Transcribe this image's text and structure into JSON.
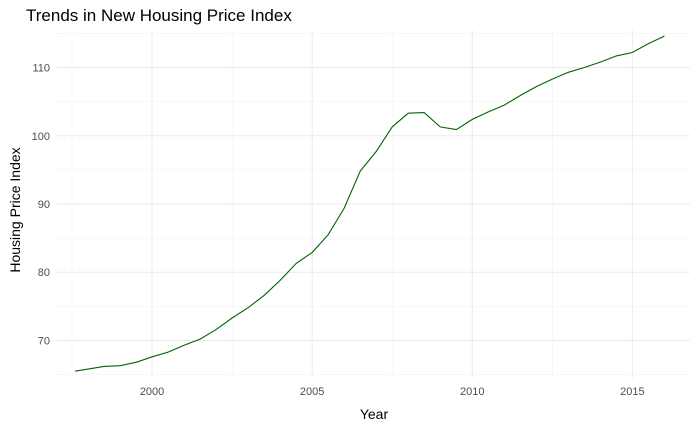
{
  "chart_data": {
    "type": "line",
    "title": "Trends in New Housing Price Index",
    "xlabel": "Year",
    "ylabel": "Housing Price Index",
    "xlim": [
      1997.0,
      2016.8
    ],
    "ylim": [
      64.5,
      115.5
    ],
    "x_ticks": [
      2000,
      2005,
      2010,
      2015
    ],
    "y_ticks": [
      70,
      80,
      90,
      100,
      110
    ],
    "grid": true,
    "line_color": "#006400",
    "series": [
      {
        "x": [
          1997.6,
          1998.0,
          1998.5,
          1999.0,
          1999.5,
          2000.0,
          2000.5,
          2001.0,
          2001.5,
          2002.0,
          2002.5,
          2003.0,
          2003.5,
          2004.0,
          2004.5,
          2005.0,
          2005.5,
          2006.0,
          2006.5,
          2007.0,
          2007.5,
          2008.0,
          2008.5,
          2009.0,
          2009.5,
          2010.0,
          2010.5,
          2011.0,
          2011.5,
          2012.0,
          2012.5,
          2013.0,
          2013.5,
          2014.0,
          2014.5,
          2015.0,
          2015.5,
          2016.0
        ],
        "y": [
          65.5,
          65.8,
          66.2,
          66.3,
          66.8,
          67.6,
          68.3,
          69.3,
          70.2,
          71.6,
          73.3,
          74.8,
          76.6,
          78.8,
          81.3,
          82.9,
          85.5,
          89.4,
          94.8,
          97.7,
          101.3,
          103.3,
          103.4,
          101.3,
          100.9,
          102.4,
          103.5,
          104.5,
          105.9,
          107.2,
          108.3,
          109.3,
          110.0,
          110.8,
          111.7,
          112.2,
          113.5,
          114.6
        ]
      }
    ]
  }
}
